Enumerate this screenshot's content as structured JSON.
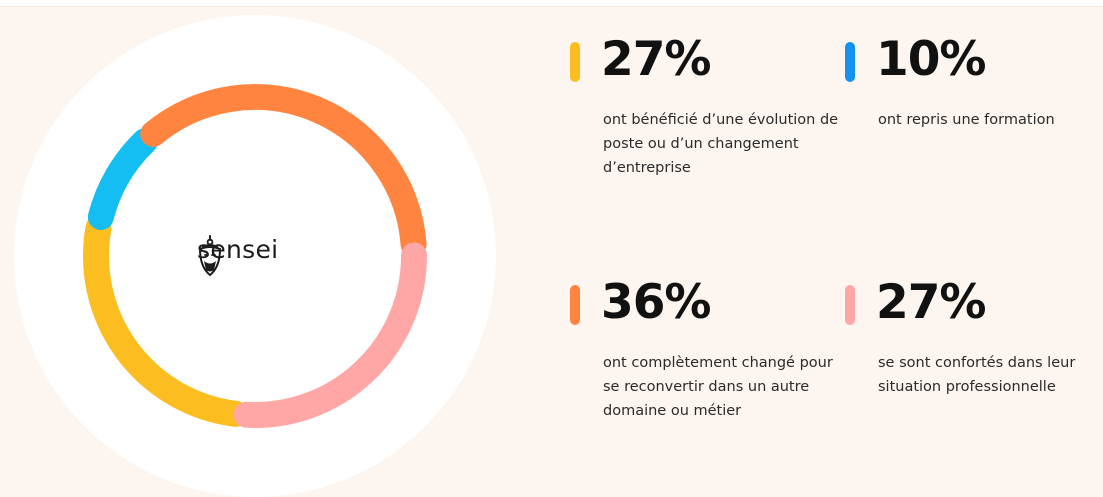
{
  "brand": {
    "name": "sensei",
    "logo_icon": "sensei-face-icon"
  },
  "chart_data": {
    "type": "pie",
    "style": "donut",
    "unit": "%",
    "slices": [
      {
        "label": "ont bénéficié d’une évolution de poste ou d’un changement d’entreprise",
        "value": 27,
        "color": "#fbbd20"
      },
      {
        "label": "ont repris une formation",
        "value": 10,
        "color": "#14bdf2"
      },
      {
        "label": "ont complètement changé pour se reconvertir dans un autre domaine ou métier",
        "value": 36,
        "color": "#ff8440"
      },
      {
        "label": "se sont confortés dans leur situation professionnelle",
        "value": 27,
        "color": "#ffa6a6"
      }
    ]
  },
  "stats": [
    {
      "value_text": "27%",
      "description": "ont bénéficié d’une évolution de poste ou d’un changement d’entreprise",
      "color": "#fbbd20"
    },
    {
      "value_text": "10%",
      "description": "ont repris une formation",
      "color": "#1591f0"
    },
    {
      "value_text": "36%",
      "description": "ont complètement changé pour se reconvertir dans un autre domaine ou métier",
      "color": "#ff8440"
    },
    {
      "value_text": "27%",
      "description": "se sont confortés dans leur situation professionnelle",
      "color": "#ffa6a6"
    }
  ]
}
